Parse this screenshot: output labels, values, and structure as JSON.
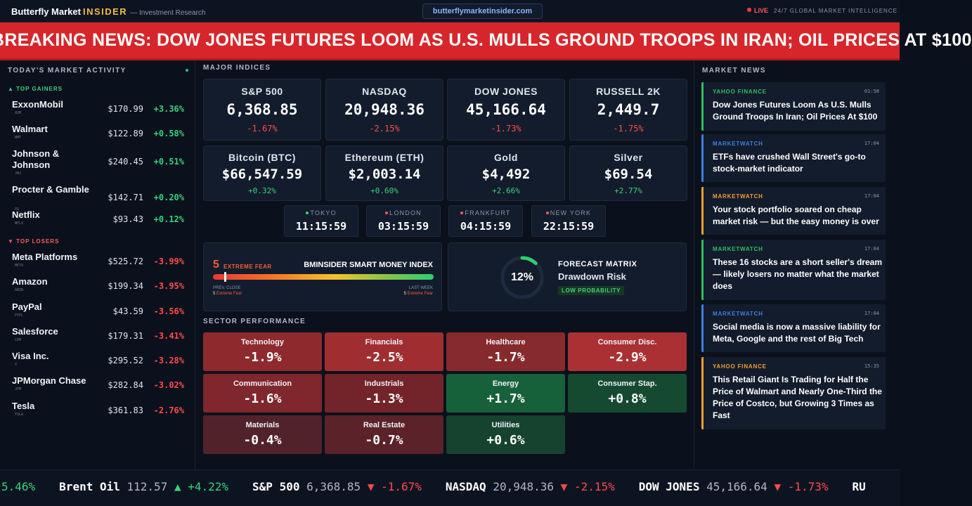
{
  "header": {
    "brand_main": "Butterfly Market",
    "brand_insider": "INSIDER",
    "brand_sub": "— Investment Research",
    "url": "butterflymarketinsider.com",
    "live": "LIVE",
    "tagline": "24/7 GLOBAL MARKET INTELLIGENCE"
  },
  "breaking": {
    "text": "BREAKING NEWS: DOW JONES FUTURES LOOM AS U.S. MULLS GROUND TROOPS IN IRAN; OIL PRICES AT $100"
  },
  "market_activity": {
    "title": "TODAY'S MARKET ACTIVITY",
    "gainers_label": "▲ TOP GAINERS",
    "losers_label": "▼ TOP LOSERS",
    "gainers": [
      {
        "name": "ExxonMobil",
        "ticker": "XOM",
        "price": "$170.99",
        "change": "+3.36%"
      },
      {
        "name": "Walmart",
        "ticker": "WMT",
        "price": "$122.89",
        "change": "+0.58%"
      },
      {
        "name": "Johnson & Johnson",
        "ticker": "JNJ",
        "price": "$240.45",
        "change": "+0.51%"
      },
      {
        "name": "Procter & Gamble",
        "ticker": "PG",
        "price": "$142.71",
        "change": "+0.20%"
      },
      {
        "name": "Netflix",
        "ticker": "NFLX",
        "price": "$93.43",
        "change": "+0.12%"
      }
    ],
    "losers": [
      {
        "name": "Meta Platforms",
        "ticker": "META",
        "price": "$525.72",
        "change": "-3.99%"
      },
      {
        "name": "Amazon",
        "ticker": "AMZN",
        "price": "$199.34",
        "change": "-3.95%"
      },
      {
        "name": "PayPal",
        "ticker": "PYPL",
        "price": "$43.59",
        "change": "-3.56%"
      },
      {
        "name": "Salesforce",
        "ticker": "CRM",
        "price": "$179.31",
        "change": "-3.41%"
      },
      {
        "name": "Visa Inc.",
        "ticker": "V",
        "price": "$295.52",
        "change": "-3.28%"
      },
      {
        "name": "JPMorgan Chase",
        "ticker": "JPM",
        "price": "$282.84",
        "change": "-3.02%"
      },
      {
        "name": "Tesla",
        "ticker": "TSLA",
        "price": "$361.83",
        "change": "-2.76%"
      }
    ]
  },
  "indices": {
    "title": "MAJOR INDICES",
    "items": [
      {
        "name": "S&P 500",
        "value": "6,368.85",
        "change": "-1.67%",
        "dir": "down"
      },
      {
        "name": "NASDAQ",
        "value": "20,948.36",
        "change": "-2.15%",
        "dir": "down"
      },
      {
        "name": "DOW JONES",
        "value": "45,166.64",
        "change": "-1.73%",
        "dir": "down"
      },
      {
        "name": "RUSSELL 2K",
        "value": "2,449.7",
        "change": "-1.75%",
        "dir": "down"
      },
      {
        "name": "Bitcoin (BTC)",
        "value": "$66,547.59",
        "change": "+0.32%",
        "dir": "up"
      },
      {
        "name": "Ethereum (ETH)",
        "value": "$2,003.14",
        "change": "+0.60%",
        "dir": "up"
      },
      {
        "name": "Gold",
        "value": "$4,492",
        "change": "+2.66%",
        "dir": "up"
      },
      {
        "name": "Silver",
        "value": "$69.54",
        "change": "+2.77%",
        "dir": "up"
      }
    ]
  },
  "clocks": [
    {
      "city": "TOKYO",
      "time": "11:15:59",
      "dot": "#3fd07a"
    },
    {
      "city": "LONDON",
      "time": "03:15:59",
      "dot": "#ff5a5a"
    },
    {
      "city": "FRANKFURT",
      "time": "04:15:59",
      "dot": "#ff5a5a"
    },
    {
      "city": "NEW YORK",
      "time": "22:15:59",
      "dot": "#ff5a5a"
    }
  ],
  "smart_money": {
    "value": "5",
    "level_label": "EXTREME FEAR",
    "title": "BMINSIDER SMART MONEY INDEX",
    "scale_max": 100,
    "prev_label": "PREV. CLOSE",
    "prev_value": "5",
    "prev_text": "Extreme Fear",
    "week_label": "LAST WEEK",
    "week_value": "5",
    "week_text": "Extreme Fear"
  },
  "forecast": {
    "percent": "12%",
    "percent_value": 12,
    "title": "FORECAST MATRIX",
    "subtitle": "Drawdown Risk",
    "badge": "LOW PROBABILITY"
  },
  "sectors": {
    "title": "SECTOR PERFORMANCE",
    "items": [
      {
        "name": "Technology",
        "value": "-1.9%",
        "color": "#8e2a2e"
      },
      {
        "name": "Financials",
        "value": "-2.5%",
        "color": "#a02e31"
      },
      {
        "name": "Healthcare",
        "value": "-1.7%",
        "color": "#862a2e"
      },
      {
        "name": "Consumer Disc.",
        "value": "-2.9%",
        "color": "#ab3033"
      },
      {
        "name": "Communication",
        "value": "-1.6%",
        "color": "#7f272c"
      },
      {
        "name": "Industrials",
        "value": "-1.3%",
        "color": "#72242a"
      },
      {
        "name": "Energy",
        "value": "+1.7%",
        "color": "#17613a"
      },
      {
        "name": "Consumer Stap.",
        "value": "+0.8%",
        "color": "#154a31"
      },
      {
        "name": "Materials",
        "value": "-0.4%",
        "color": "#51222a"
      },
      {
        "name": "Real Estate",
        "value": "-0.7%",
        "color": "#5b2229"
      },
      {
        "name": "Utilities",
        "value": "+0.6%",
        "color": "#15432f"
      }
    ]
  },
  "news": {
    "title": "MARKET NEWS",
    "items": [
      {
        "source": "YAHOO FINANCE",
        "time": "01:58",
        "headline": "Dow Jones Futures Loom As U.S. Mulls Ground Troops In Iran; Oil Prices At $100",
        "color": "#2fbf5f"
      },
      {
        "source": "MARKETWATCH",
        "time": "17:04",
        "headline": "ETFs have crushed Wall Street's go-to stock-market indicator",
        "color": "#3f7fe0"
      },
      {
        "source": "MARKETWATCH",
        "time": "17:04",
        "headline": "Your stock portfolio soared on cheap market risk — but the easy money is over",
        "color": "#f0a030"
      },
      {
        "source": "MARKETWATCH",
        "time": "17:04",
        "headline": "These 16 stocks are a short seller's dream — likely losers no matter what the market does",
        "color": "#2fbf5f"
      },
      {
        "source": "MARKETWATCH",
        "time": "17:04",
        "headline": "Social media is now a massive liability for Meta, Google and the rest of Big Tech",
        "color": "#3f7fe0"
      },
      {
        "source": "YAHOO FINANCE",
        "time": "15:35",
        "headline": "This Retail Giant Is Trading for Half the Price of Walmart and Nearly One-Third the Price of Costco, but Growing 3 Times as Fast",
        "color": "#f0a030"
      }
    ]
  },
  "ticker": {
    "items": [
      {
        "name": "",
        "price": "",
        "arrow": "",
        "change": "5.46%",
        "dir": "up"
      },
      {
        "name": "Brent Oil",
        "price": "112.57",
        "arrow": "▲",
        "change": "+4.22%",
        "dir": "up"
      },
      {
        "name": "S&P 500",
        "price": "6,368.85",
        "arrow": "▼",
        "change": "-1.67%",
        "dir": "down"
      },
      {
        "name": "NASDAQ",
        "price": "20,948.36",
        "arrow": "▼",
        "change": "-2.15%",
        "dir": "down"
      },
      {
        "name": "DOW JONES",
        "price": "45,166.64",
        "arrow": "▼",
        "change": "-1.73%",
        "dir": "down"
      },
      {
        "name": "RU",
        "price": "",
        "arrow": "",
        "change": "",
        "dir": "down"
      }
    ]
  }
}
